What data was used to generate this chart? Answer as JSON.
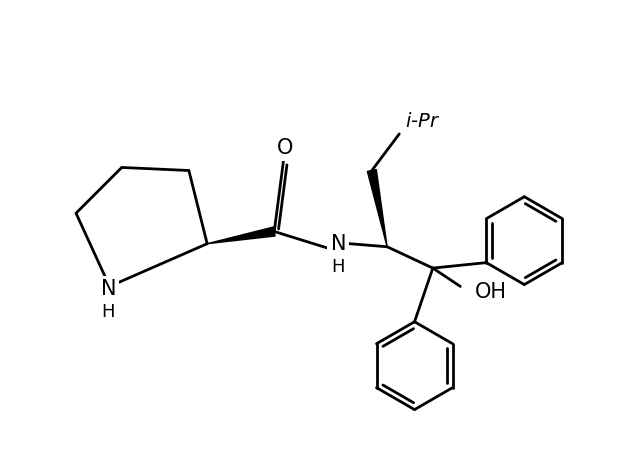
{
  "background_color": "#ffffff",
  "line_color": "#000000",
  "line_width": 2.0,
  "font_size": 14,
  "figure_width": 6.4,
  "figure_height": 4.63,
  "dpi": 100,
  "xlim": [
    0,
    10
  ],
  "ylim": [
    0,
    7.5
  ]
}
